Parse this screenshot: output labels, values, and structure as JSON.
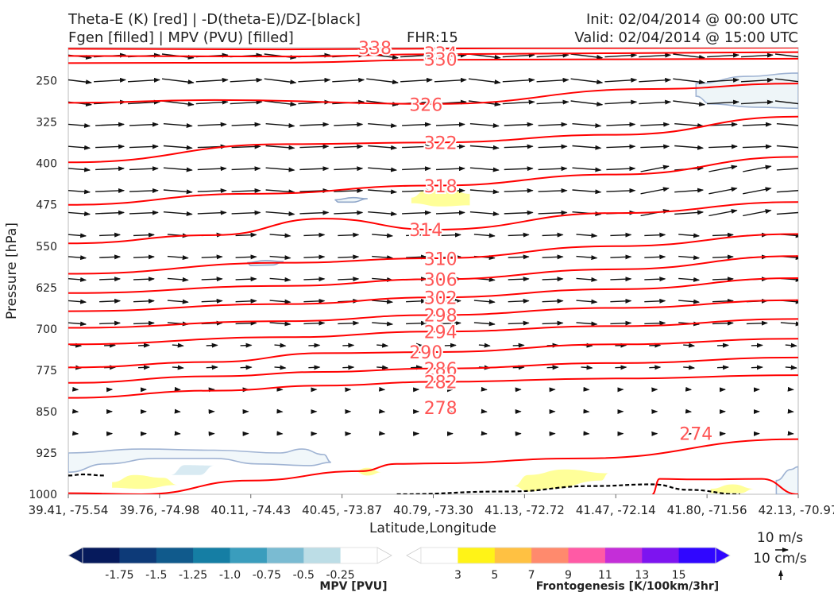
{
  "header": {
    "title_line1": "Theta-E (K) [red] | -D(theta-E)/DZ-[black]",
    "title_line2": "Fgen [filled] | MPV (PVU) [filled]",
    "fhr": "FHR:15",
    "init": "Init: 02/04/2014 @ 00:00 UTC",
    "valid": "Valid: 02/04/2014 @ 15:00 UTC"
  },
  "chart_data": {
    "type": "cross-section",
    "ylabel": "Pressure [hPa]",
    "xlabel": "Latitude,Longitude",
    "yticks": [
      250,
      325,
      400,
      475,
      550,
      625,
      700,
      775,
      850,
      925,
      1000
    ],
    "ylim": [
      1000,
      190
    ],
    "xticks": [
      "39.41, -75.54",
      "39.76, -74.98",
      "40.11, -74.43",
      "40.45, -73.87",
      "40.79, -73.30",
      "41.13, -72.72",
      "41.47, -72.14",
      "41.80, -71.56",
      "42.13, -70.97"
    ],
    "theta_e": {
      "color": "#ff0000",
      "contour_labels": [
        {
          "label": "338",
          "x": 0.42,
          "p": 190
        },
        {
          "label": "334",
          "x": 0.51,
          "p": 200
        },
        {
          "label": "330",
          "x": 0.51,
          "p": 211
        },
        {
          "label": "326",
          "x": 0.49,
          "p": 293
        },
        {
          "label": "322",
          "x": 0.51,
          "p": 362
        },
        {
          "label": "318",
          "x": 0.51,
          "p": 441
        },
        {
          "label": "314",
          "x": 0.49,
          "p": 520
        },
        {
          "label": "310",
          "x": 0.51,
          "p": 573
        },
        {
          "label": "306",
          "x": 0.51,
          "p": 610
        },
        {
          "label": "302",
          "x": 0.51,
          "p": 643
        },
        {
          "label": "298",
          "x": 0.51,
          "p": 675
        },
        {
          "label": "294",
          "x": 0.51,
          "p": 705
        },
        {
          "label": "290",
          "x": 0.49,
          "p": 742
        },
        {
          "label": "286",
          "x": 0.51,
          "p": 772
        },
        {
          "label": "282",
          "x": 0.51,
          "p": 796
        },
        {
          "label": "278",
          "x": 0.51,
          "p": 843
        },
        {
          "label": "274",
          "x": 0.86,
          "p": 890
        }
      ],
      "contour_values": [
        338,
        334,
        330,
        326,
        322,
        318,
        314,
        310,
        306,
        302,
        298,
        294,
        290,
        286,
        282,
        278,
        274
      ]
    },
    "wind_scale": {
      "horizontal": "10 m/s",
      "vertical": "10 cm/s"
    },
    "mpv_colorbar": {
      "label": "MPV [PVU]",
      "ticks": [
        "-1.75",
        "-1.5",
        "-1.25",
        "-1.0",
        "-0.75",
        "-0.5",
        "-0.25"
      ],
      "colors": [
        "#061a5c",
        "#0d3a78",
        "#105a8c",
        "#157ea4",
        "#3a9dbd",
        "#7abbd2",
        "#bcdde6",
        "#ffffff"
      ]
    },
    "fgen_colorbar": {
      "label": "Frontogenesis [K/100km/3hr]",
      "ticks": [
        "3",
        "5",
        "7",
        "9",
        "11",
        "13",
        "15"
      ],
      "colors": [
        "#ffffff",
        "#fff317",
        "#ffc142",
        "#ff8a6d",
        "#ff5aa5",
        "#c42ed8",
        "#7d14f0",
        "#3006ff"
      ]
    }
  }
}
